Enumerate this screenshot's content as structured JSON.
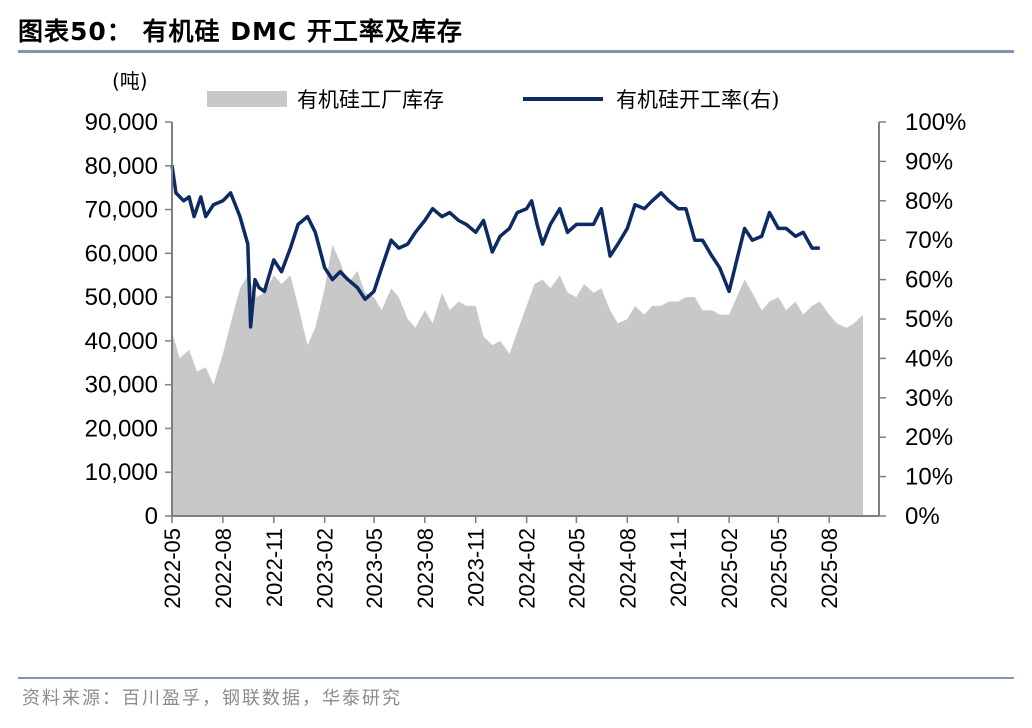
{
  "figure": {
    "title": "图表50： 有机硅 DMC 开工率及库存",
    "source": "资料来源：百川盈孚，钢联数据，华泰研究"
  },
  "chart_data": {
    "type": "area+line",
    "left_unit": "(吨)",
    "legend": [
      "有机硅工厂库存",
      "有机硅开工率(右)"
    ],
    "left_axis": {
      "ylim": [
        0,
        90000
      ],
      "ticks": [
        "0",
        "10,000",
        "20,000",
        "30,000",
        "40,000",
        "50,000",
        "60,000",
        "70,000",
        "80,000",
        "90,000"
      ]
    },
    "right_axis": {
      "ylim": [
        0,
        100
      ],
      "ticks": [
        "0%",
        "10%",
        "20%",
        "30%",
        "40%",
        "50%",
        "60%",
        "70%",
        "80%",
        "90%",
        "100%"
      ]
    },
    "x_ticks": [
      "2022-05",
      "2022-08",
      "2022-11",
      "2023-02",
      "2023-05",
      "2023-08",
      "2023-11",
      "2024-02",
      "2024-05",
      "2024-08",
      "2024-11",
      "2025-02",
      "2025-05",
      "2025-08"
    ],
    "x_range": [
      "2022-05",
      "2025-10"
    ],
    "colors": {
      "inventory_fill": "#c8c8c8",
      "rate_line": "#0d2a63",
      "axis": "#7f7f7f"
    },
    "series": [
      {
        "name": "有机硅工厂库存",
        "type": "area",
        "axis": "left",
        "points": [
          [
            "2022-05-01",
            42000
          ],
          [
            "2022-05-15",
            36000
          ],
          [
            "2022-06-01",
            38000
          ],
          [
            "2022-06-15",
            33000
          ],
          [
            "2022-07-01",
            34000
          ],
          [
            "2022-07-15",
            30000
          ],
          [
            "2022-08-01",
            37000
          ],
          [
            "2022-08-15",
            44000
          ],
          [
            "2022-09-01",
            52000
          ],
          [
            "2022-09-15",
            55000
          ],
          [
            "2022-10-01",
            50000
          ],
          [
            "2022-10-15",
            51000
          ],
          [
            "2022-11-01",
            55000
          ],
          [
            "2022-11-15",
            53000
          ],
          [
            "2022-12-01",
            55000
          ],
          [
            "2022-12-15",
            48000
          ],
          [
            "2023-01-01",
            39000
          ],
          [
            "2023-01-15",
            43000
          ],
          [
            "2023-02-01",
            52000
          ],
          [
            "2023-02-15",
            62000
          ],
          [
            "2023-03-01",
            58000
          ],
          [
            "2023-03-15",
            53000
          ],
          [
            "2023-04-01",
            56000
          ],
          [
            "2023-04-15",
            51000
          ],
          [
            "2023-05-01",
            50000
          ],
          [
            "2023-05-15",
            47000
          ],
          [
            "2023-06-01",
            52000
          ],
          [
            "2023-06-15",
            50000
          ],
          [
            "2023-07-01",
            45000
          ],
          [
            "2023-07-15",
            43000
          ],
          [
            "2023-08-01",
            47000
          ],
          [
            "2023-08-15",
            44000
          ],
          [
            "2023-09-01",
            51000
          ],
          [
            "2023-09-15",
            47000
          ],
          [
            "2023-10-01",
            49000
          ],
          [
            "2023-10-15",
            48000
          ],
          [
            "2023-11-01",
            48000
          ],
          [
            "2023-11-15",
            41000
          ],
          [
            "2023-12-01",
            39000
          ],
          [
            "2023-12-15",
            40000
          ],
          [
            "2024-01-01",
            37000
          ],
          [
            "2024-01-15",
            42000
          ],
          [
            "2024-02-01",
            48000
          ],
          [
            "2024-02-15",
            53000
          ],
          [
            "2024-03-01",
            54000
          ],
          [
            "2024-03-15",
            52000
          ],
          [
            "2024-04-01",
            55000
          ],
          [
            "2024-04-15",
            51000
          ],
          [
            "2024-05-01",
            50000
          ],
          [
            "2024-05-15",
            53000
          ],
          [
            "2024-06-01",
            51000
          ],
          [
            "2024-06-15",
            52000
          ],
          [
            "2024-07-01",
            47000
          ],
          [
            "2024-07-15",
            44000
          ],
          [
            "2024-08-01",
            45000
          ],
          [
            "2024-08-15",
            48000
          ],
          [
            "2024-09-01",
            46000
          ],
          [
            "2024-09-15",
            48000
          ],
          [
            "2024-10-01",
            48000
          ],
          [
            "2024-10-15",
            49000
          ],
          [
            "2024-11-01",
            49000
          ],
          [
            "2024-11-15",
            50000
          ],
          [
            "2024-12-01",
            50000
          ],
          [
            "2024-12-15",
            47000
          ],
          [
            "2025-01-01",
            47000
          ],
          [
            "2025-01-15",
            46000
          ],
          [
            "2025-02-01",
            46000
          ],
          [
            "2025-02-15",
            50000
          ],
          [
            "2025-03-01",
            54000
          ],
          [
            "2025-03-15",
            51000
          ],
          [
            "2025-04-01",
            47000
          ],
          [
            "2025-04-15",
            49000
          ],
          [
            "2025-05-01",
            50000
          ],
          [
            "2025-05-15",
            47000
          ],
          [
            "2025-06-01",
            49000
          ],
          [
            "2025-06-15",
            46000
          ],
          [
            "2025-07-01",
            48000
          ],
          [
            "2025-07-15",
            49000
          ],
          [
            "2025-08-01",
            46000
          ],
          [
            "2025-08-15",
            44000
          ],
          [
            "2025-09-01",
            43000
          ],
          [
            "2025-09-15",
            44000
          ],
          [
            "2025-10-01",
            46000
          ]
        ]
      },
      {
        "name": "有机硅开工率(右)",
        "type": "line",
        "axis": "right",
        "points": [
          [
            "2022-05-01",
            89
          ],
          [
            "2022-05-08",
            82
          ],
          [
            "2022-05-22",
            80
          ],
          [
            "2022-06-01",
            81
          ],
          [
            "2022-06-10",
            76
          ],
          [
            "2022-06-22",
            81
          ],
          [
            "2022-07-01",
            76
          ],
          [
            "2022-07-15",
            79
          ],
          [
            "2022-08-01",
            80
          ],
          [
            "2022-08-15",
            82
          ],
          [
            "2022-09-01",
            76
          ],
          [
            "2022-09-15",
            69
          ],
          [
            "2022-09-20",
            48
          ],
          [
            "2022-09-28",
            60
          ],
          [
            "2022-10-05",
            58
          ],
          [
            "2022-10-15",
            57
          ],
          [
            "2022-11-01",
            65
          ],
          [
            "2022-11-15",
            62
          ],
          [
            "2022-12-01",
            68
          ],
          [
            "2022-12-15",
            74
          ],
          [
            "2023-01-01",
            76
          ],
          [
            "2023-01-15",
            72
          ],
          [
            "2023-02-01",
            63
          ],
          [
            "2023-02-15",
            60
          ],
          [
            "2023-03-01",
            62
          ],
          [
            "2023-03-15",
            60
          ],
          [
            "2023-04-01",
            58
          ],
          [
            "2023-04-15",
            55
          ],
          [
            "2023-05-01",
            57
          ],
          [
            "2023-05-15",
            63
          ],
          [
            "2023-06-01",
            70
          ],
          [
            "2023-06-15",
            68
          ],
          [
            "2023-07-01",
            69
          ],
          [
            "2023-07-15",
            72
          ],
          [
            "2023-08-01",
            75
          ],
          [
            "2023-08-15",
            78
          ],
          [
            "2023-09-01",
            76
          ],
          [
            "2023-09-15",
            77
          ],
          [
            "2023-10-01",
            75
          ],
          [
            "2023-10-15",
            74
          ],
          [
            "2023-11-01",
            72
          ],
          [
            "2023-11-15",
            75
          ],
          [
            "2023-12-01",
            67
          ],
          [
            "2023-12-15",
            71
          ],
          [
            "2024-01-01",
            73
          ],
          [
            "2024-01-15",
            77
          ],
          [
            "2024-02-01",
            78
          ],
          [
            "2024-02-10",
            80
          ],
          [
            "2024-02-20",
            74
          ],
          [
            "2024-03-01",
            69
          ],
          [
            "2024-03-15",
            74
          ],
          [
            "2024-04-01",
            78
          ],
          [
            "2024-04-15",
            72
          ],
          [
            "2024-05-01",
            74
          ],
          [
            "2024-05-15",
            74
          ],
          [
            "2024-06-01",
            74
          ],
          [
            "2024-06-15",
            78
          ],
          [
            "2024-07-01",
            66
          ],
          [
            "2024-07-15",
            69
          ],
          [
            "2024-08-01",
            73
          ],
          [
            "2024-08-15",
            79
          ],
          [
            "2024-09-01",
            78
          ],
          [
            "2024-09-15",
            80
          ],
          [
            "2024-10-01",
            82
          ],
          [
            "2024-10-15",
            80
          ],
          [
            "2024-11-01",
            78
          ],
          [
            "2024-11-15",
            78
          ],
          [
            "2024-12-01",
            70
          ],
          [
            "2024-12-15",
            70
          ],
          [
            "2025-01-01",
            66
          ],
          [
            "2025-01-15",
            63
          ],
          [
            "2025-02-01",
            57
          ],
          [
            "2025-02-15",
            65
          ],
          [
            "2025-03-01",
            73
          ],
          [
            "2025-03-15",
            70
          ],
          [
            "2025-04-01",
            71
          ],
          [
            "2025-04-15",
            77
          ],
          [
            "2025-05-01",
            73
          ],
          [
            "2025-05-15",
            73
          ],
          [
            "2025-06-01",
            71
          ],
          [
            "2025-06-15",
            72
          ],
          [
            "2025-07-01",
            68
          ],
          [
            "2025-07-15",
            68
          ]
        ]
      }
    ]
  }
}
